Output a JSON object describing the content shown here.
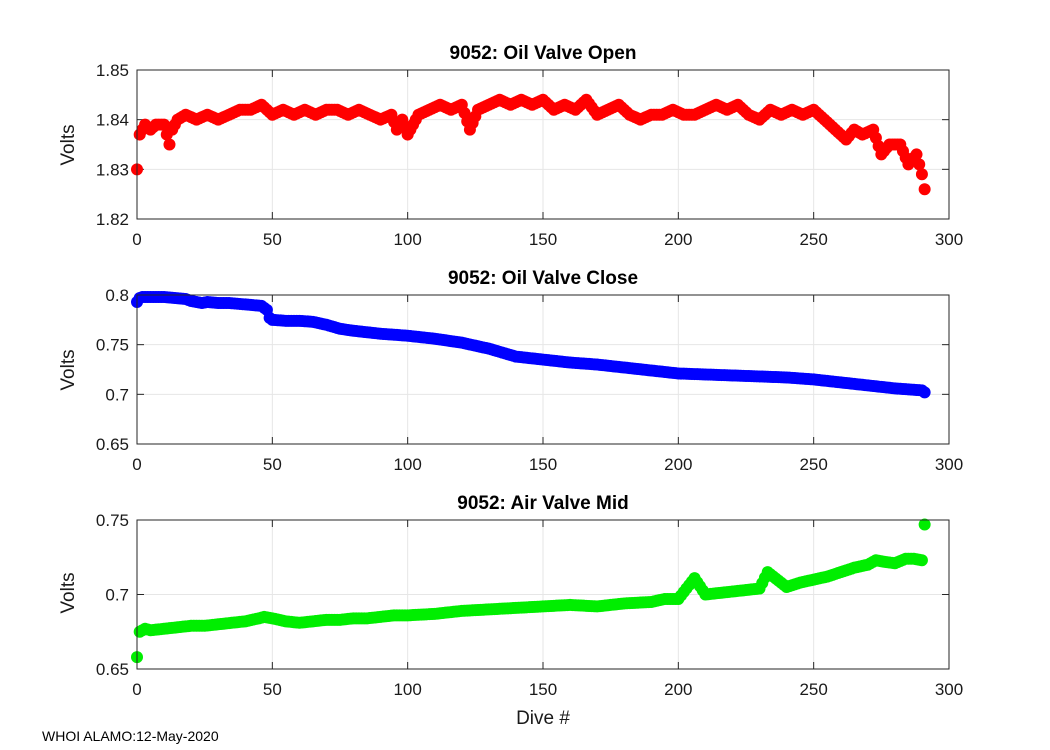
{
  "footer": "WHOI ALAMO:12-May-2020",
  "x_axis_label": "Dive #",
  "chart_data": [
    {
      "type": "scatter",
      "title": "9052: Oil Valve Open",
      "xlabel": "",
      "ylabel": "Volts",
      "xlim": [
        0,
        300
      ],
      "ylim": [
        1.82,
        1.85
      ],
      "xticks": [
        "0",
        "50",
        "100",
        "150",
        "200",
        "250",
        "300"
      ],
      "yticks": [
        "1.82",
        "1.83",
        "1.84",
        "1.85"
      ],
      "grid": true,
      "color": "#ff0000",
      "series": [
        {
          "name": "Oil Valve Open",
          "x": [
            0,
            1,
            3,
            5,
            7,
            10,
            12,
            13,
            15,
            18,
            22,
            26,
            30,
            34,
            38,
            42,
            46,
            50,
            54,
            58,
            62,
            66,
            70,
            74,
            78,
            82,
            86,
            90,
            94,
            96,
            98,
            100,
            104,
            108,
            112,
            116,
            120,
            123,
            126,
            130,
            134,
            138,
            142,
            146,
            150,
            154,
            158,
            162,
            166,
            170,
            174,
            178,
            182,
            186,
            190,
            194,
            198,
            202,
            206,
            210,
            214,
            218,
            222,
            226,
            230,
            234,
            238,
            242,
            246,
            250,
            254,
            258,
            262,
            265,
            268,
            272,
            275,
            278,
            282,
            285,
            288,
            290,
            291
          ],
          "y": [
            1.83,
            1.837,
            1.839,
            1.838,
            1.839,
            1.839,
            1.835,
            1.838,
            1.84,
            1.841,
            1.84,
            1.841,
            1.84,
            1.841,
            1.842,
            1.842,
            1.843,
            1.841,
            1.842,
            1.841,
            1.842,
            1.841,
            1.842,
            1.842,
            1.841,
            1.842,
            1.841,
            1.84,
            1.841,
            1.838,
            1.84,
            1.837,
            1.841,
            1.842,
            1.843,
            1.842,
            1.843,
            1.838,
            1.842,
            1.843,
            1.844,
            1.843,
            1.844,
            1.843,
            1.844,
            1.842,
            1.843,
            1.842,
            1.844,
            1.841,
            1.842,
            1.843,
            1.841,
            1.84,
            1.841,
            1.841,
            1.842,
            1.841,
            1.841,
            1.842,
            1.843,
            1.842,
            1.843,
            1.841,
            1.84,
            1.842,
            1.841,
            1.842,
            1.841,
            1.842,
            1.84,
            1.838,
            1.836,
            1.838,
            1.837,
            1.838,
            1.833,
            1.835,
            1.835,
            1.831,
            1.833,
            1.829,
            1.826
          ]
        }
      ]
    },
    {
      "type": "scatter",
      "title": "9052: Oil Valve Close",
      "xlabel": "",
      "ylabel": "Volts",
      "xlim": [
        0,
        300
      ],
      "ylim": [
        0.65,
        0.8
      ],
      "xticks": [
        "0",
        "50",
        "100",
        "150",
        "200",
        "250",
        "300"
      ],
      "yticks": [
        "0.65",
        "0.7",
        "0.75",
        "0.8"
      ],
      "grid": true,
      "color": "#0000ff",
      "series": [
        {
          "name": "Oil Valve Close",
          "x": [
            0,
            1,
            2,
            4,
            6,
            8,
            10,
            14,
            18,
            20,
            22,
            24,
            26,
            30,
            34,
            38,
            42,
            46,
            48,
            49,
            50,
            55,
            60,
            65,
            70,
            75,
            80,
            90,
            100,
            110,
            120,
            130,
            135,
            140,
            150,
            160,
            170,
            180,
            190,
            200,
            210,
            220,
            230,
            240,
            250,
            260,
            270,
            280,
            285,
            290,
            291
          ],
          "y": [
            0.793,
            0.797,
            0.798,
            0.798,
            0.798,
            0.798,
            0.798,
            0.797,
            0.796,
            0.794,
            0.793,
            0.792,
            0.793,
            0.792,
            0.792,
            0.791,
            0.79,
            0.789,
            0.785,
            0.777,
            0.775,
            0.774,
            0.774,
            0.773,
            0.77,
            0.766,
            0.764,
            0.761,
            0.759,
            0.756,
            0.752,
            0.746,
            0.742,
            0.738,
            0.735,
            0.732,
            0.73,
            0.727,
            0.724,
            0.721,
            0.72,
            0.719,
            0.718,
            0.717,
            0.715,
            0.712,
            0.709,
            0.706,
            0.705,
            0.704,
            0.702
          ]
        }
      ]
    },
    {
      "type": "scatter",
      "title": "9052: Air Valve Mid",
      "xlabel": "Dive #",
      "ylabel": "Volts",
      "xlim": [
        0,
        300
      ],
      "ylim": [
        0.65,
        0.75
      ],
      "xticks": [
        "0",
        "50",
        "100",
        "150",
        "200",
        "250",
        "300"
      ],
      "yticks": [
        "0.65",
        "0.7",
        "0.75"
      ],
      "grid": true,
      "color": "#00ee00",
      "series": [
        {
          "name": "Air Valve Mid",
          "x": [
            0,
            1,
            3,
            5,
            10,
            15,
            20,
            25,
            30,
            35,
            40,
            45,
            47,
            50,
            55,
            60,
            65,
            70,
            75,
            80,
            85,
            90,
            95,
            100,
            110,
            120,
            130,
            140,
            150,
            160,
            170,
            180,
            190,
            195,
            200,
            206,
            210,
            220,
            230,
            233,
            240,
            245,
            250,
            255,
            260,
            265,
            270,
            273,
            276,
            280,
            284,
            287,
            290,
            291
          ],
          "y": [
            0.658,
            0.675,
            0.677,
            0.676,
            0.677,
            0.678,
            0.679,
            0.679,
            0.68,
            0.681,
            0.682,
            0.684,
            0.685,
            0.684,
            0.682,
            0.681,
            0.682,
            0.683,
            0.683,
            0.684,
            0.684,
            0.685,
            0.686,
            0.686,
            0.687,
            0.689,
            0.69,
            0.691,
            0.692,
            0.693,
            0.692,
            0.694,
            0.695,
            0.697,
            0.697,
            0.711,
            0.7,
            0.702,
            0.704,
            0.715,
            0.705,
            0.708,
            0.71,
            0.712,
            0.715,
            0.718,
            0.72,
            0.723,
            0.722,
            0.721,
            0.724,
            0.724,
            0.723,
            0.747
          ]
        }
      ]
    }
  ]
}
